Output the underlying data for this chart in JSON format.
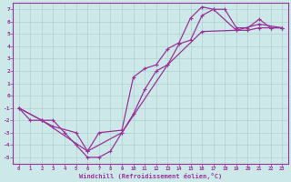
{
  "xlabel": "Windchill (Refroidissement éolien,°C)",
  "xlim": [
    -0.5,
    23.5
  ],
  "ylim": [
    -5.5,
    7.5
  ],
  "xticks": [
    0,
    1,
    2,
    3,
    4,
    5,
    6,
    7,
    8,
    9,
    10,
    11,
    12,
    13,
    14,
    15,
    16,
    17,
    18,
    19,
    20,
    21,
    22,
    23
  ],
  "yticks": [
    -5,
    -4,
    -3,
    -2,
    -1,
    0,
    1,
    2,
    3,
    4,
    5,
    6,
    7
  ],
  "bg_color": "#cce8e8",
  "grid_color": "#b0d0d0",
  "line_color": "#993399",
  "line1_x": [
    0,
    1,
    2,
    3,
    4,
    5,
    6,
    7,
    8,
    9,
    10,
    11,
    12,
    13,
    14,
    15,
    16,
    17,
    18,
    19,
    20,
    21,
    22,
    23
  ],
  "line1_y": [
    -1,
    -2,
    -2,
    -2,
    -3,
    -4,
    -5,
    -5,
    -4.5,
    -3,
    -1.5,
    0.5,
    2,
    2.5,
    4.2,
    4.5,
    6.5,
    7,
    7,
    5.5,
    5.5,
    6.2,
    5.5,
    5.5
  ],
  "line2_x": [
    0,
    2,
    3,
    5,
    6,
    7,
    9,
    10,
    11,
    12,
    13,
    14,
    15,
    16,
    17,
    19,
    20,
    21,
    22,
    23
  ],
  "line2_y": [
    -1,
    -2,
    -2.5,
    -3,
    -4.5,
    -3,
    -2.8,
    1.5,
    2.2,
    2.5,
    3.8,
    4.3,
    6.3,
    7.2,
    7,
    5.3,
    5.3,
    5.5,
    5.5,
    5.5
  ],
  "line3_x": [
    0,
    2,
    6,
    9,
    13,
    16,
    19,
    21,
    23
  ],
  "line3_y": [
    -1,
    -2,
    -4.5,
    -3,
    2.5,
    5.2,
    5.3,
    5.8,
    5.5
  ]
}
